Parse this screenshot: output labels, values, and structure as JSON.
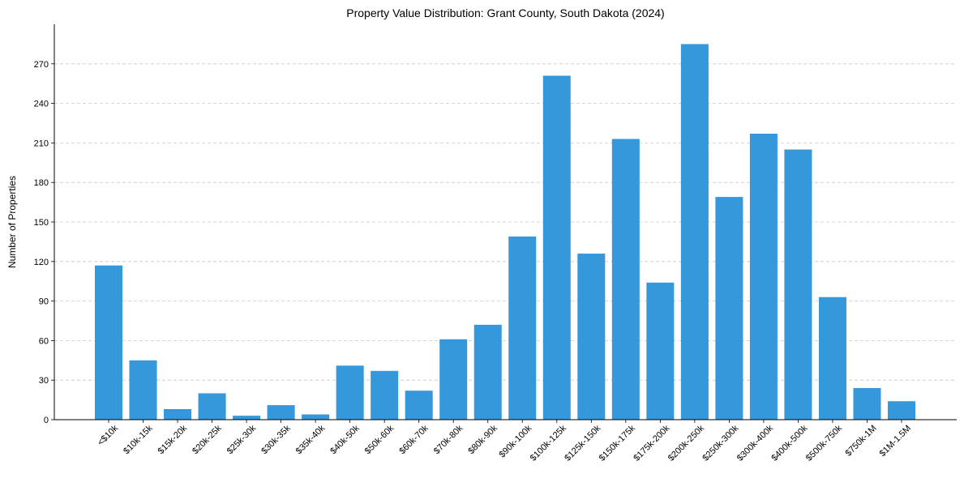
{
  "chart_data": {
    "type": "bar",
    "title": "Property Value Distribution: Grant County, South Dakota (2024)",
    "xlabel": "",
    "ylabel": "Number of Properties",
    "ylim": [
      0,
      300
    ],
    "yticks": [
      0,
      30,
      60,
      90,
      120,
      150,
      180,
      210,
      240,
      270
    ],
    "grid": "horizontal-dashed",
    "bar_color": "#3498db",
    "categories": [
      "<$10k",
      "$10k-15k",
      "$15k-20k",
      "$20k-25k",
      "$25k-30k",
      "$30k-35k",
      "$35k-40k",
      "$40k-50k",
      "$50k-60k",
      "$60k-70k",
      "$70k-80k",
      "$80k-90k",
      "$90k-100k",
      "$100k-125k",
      "$125k-150k",
      "$150k-175k",
      "$175k-200k",
      "$200k-250k",
      "$250k-300k",
      "$300k-400k",
      "$400k-500k",
      "$500k-750k",
      "$750k-1M",
      "$1M-1.5M"
    ],
    "values": [
      117,
      45,
      8,
      20,
      3,
      11,
      4,
      41,
      37,
      22,
      61,
      72,
      139,
      261,
      126,
      213,
      104,
      285,
      169,
      217,
      205,
      93,
      24,
      14
    ]
  }
}
